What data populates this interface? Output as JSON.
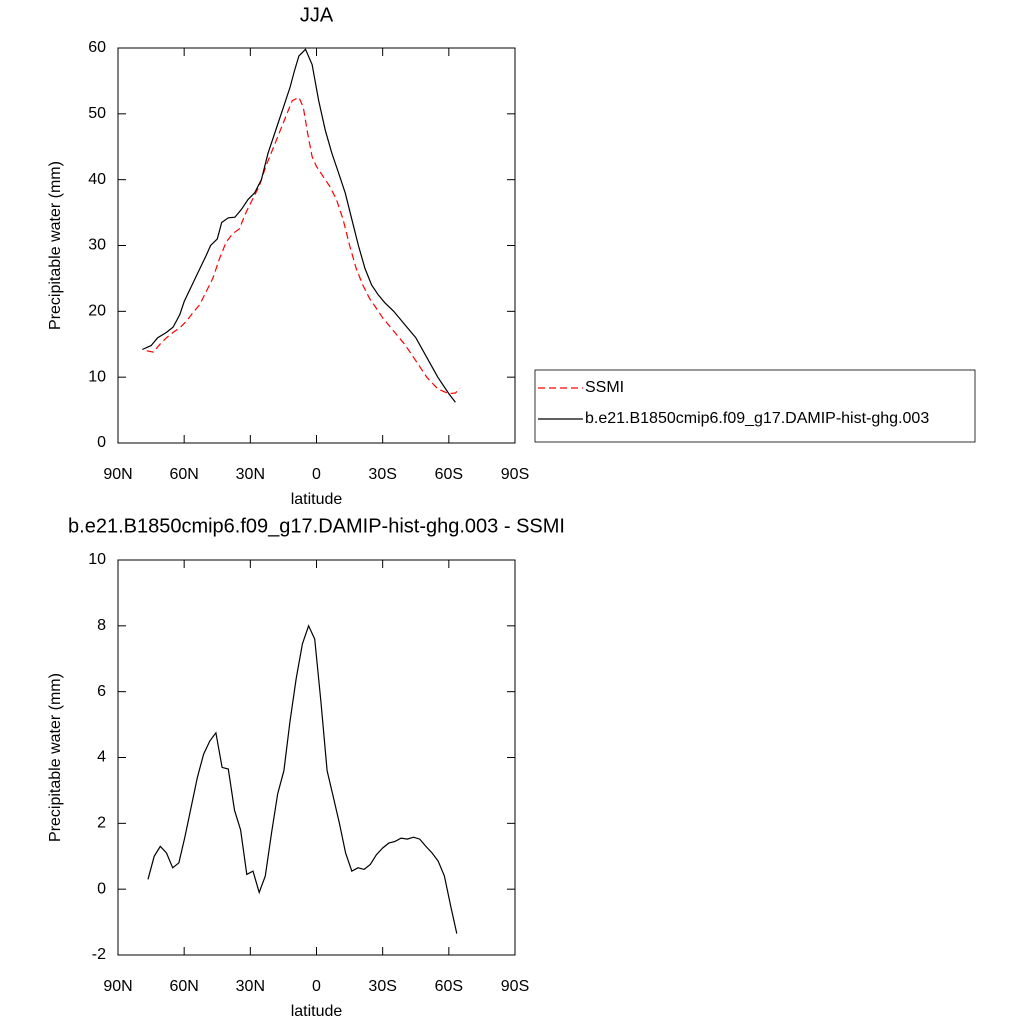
{
  "chart_data": [
    {
      "type": "line",
      "title": "JJA",
      "xlabel": "latitude",
      "ylabel": "Precipitable water (mm)",
      "xlim": [
        90,
        -90
      ],
      "ylim": [
        0,
        60
      ],
      "xticks": [
        {
          "value": 90,
          "label": "90N"
        },
        {
          "value": 60,
          "label": "60N"
        },
        {
          "value": 30,
          "label": "30N"
        },
        0,
        {
          "value": -30,
          "label": "30S"
        },
        {
          "value": -60,
          "label": "60S"
        },
        {
          "value": -90,
          "label": "90S"
        }
      ],
      "yticks": [
        0,
        10,
        20,
        30,
        40,
        50,
        60
      ],
      "legend": "right",
      "series": [
        {
          "name": "SSMI",
          "color": "#ff0000",
          "dash": true,
          "x": [
            77,
            74,
            71,
            68,
            65,
            62,
            59,
            56,
            53,
            50,
            47,
            44,
            41,
            38,
            35,
            32,
            29,
            26,
            23,
            20,
            17,
            14,
            11,
            8,
            6,
            4,
            2,
            0,
            -3,
            -6,
            -9,
            -12,
            -15,
            -18,
            -21,
            -24,
            -27,
            -30,
            -35,
            -40,
            -45,
            -50,
            -55,
            -60,
            -63,
            -65
          ],
          "values": [
            14,
            13.8,
            15,
            16,
            16.8,
            17.5,
            18.5,
            19.8,
            21,
            23,
            25,
            28,
            30.5,
            31.8,
            32.5,
            35,
            37,
            39,
            42,
            44.5,
            47,
            49.5,
            52,
            52.5,
            51,
            47,
            43.5,
            42,
            40.5,
            39,
            37,
            34,
            30,
            26.5,
            24,
            22,
            20.5,
            19,
            17,
            15,
            12.5,
            10,
            8.2,
            7.5,
            7.6,
            8.3
          ]
        },
        {
          "name": "b.e21.B1850cmip6.f09_g17.DAMIP-hist-ghg.003",
          "color": "#000000",
          "dash": false,
          "x": [
            79,
            75,
            72,
            68,
            65,
            62,
            60,
            55,
            50,
            48,
            45,
            43,
            40,
            37,
            34,
            31,
            28,
            25,
            22,
            18,
            15,
            12,
            10,
            8,
            5,
            2,
            -1,
            -4,
            -7,
            -10,
            -13,
            -16,
            -19,
            -22,
            -25,
            -28,
            -31,
            -35,
            -40,
            -45,
            -50,
            -55,
            -60,
            -63
          ],
          "values": [
            14.2,
            14.8,
            16,
            16.8,
            17.6,
            19.5,
            21.5,
            25,
            28.5,
            30,
            31,
            33.5,
            34.2,
            34.3,
            35.5,
            37,
            38,
            40,
            44,
            48,
            51,
            54,
            56.5,
            58.8,
            59.8,
            57.5,
            52,
            47.5,
            44,
            41,
            38,
            34,
            30,
            26.5,
            24,
            22.5,
            21.3,
            20,
            18,
            16,
            13,
            10,
            7.5,
            6.2
          ]
        }
      ]
    },
    {
      "type": "line",
      "title": "b.e21.B1850cmip6.f09_g17.DAMIP-hist-ghg.003 - SSMI",
      "xlabel": "latitude",
      "ylabel": "Precipitable water (mm)",
      "xlim": [
        90,
        -90
      ],
      "ylim": [
        -2,
        10
      ],
      "xticks": [
        {
          "value": 90,
          "label": "90N"
        },
        {
          "value": 60,
          "label": "60N"
        },
        {
          "value": 30,
          "label": "30N"
        },
        0,
        {
          "value": -30,
          "label": "30S"
        },
        {
          "value": -60,
          "label": "60S"
        },
        {
          "value": -90,
          "label": "90S"
        }
      ],
      "yticks": [
        -2,
        0,
        2,
        4,
        6,
        8,
        10
      ],
      "color": "#000000",
      "x": [
        76.4,
        73.6,
        70.8,
        68,
        65.2,
        62.4,
        59.6,
        56.8,
        54,
        51.2,
        48.4,
        45.6,
        42.8,
        40,
        37.2,
        34.4,
        31.6,
        28.8,
        26,
        23.2,
        20.4,
        17.6,
        14.8,
        12,
        9.2,
        6.4,
        3.6,
        0.8,
        -2,
        -4.8,
        -7.6,
        -10.4,
        -13.2,
        -16,
        -18.8,
        -21.6,
        -24.4,
        -27.2,
        -30,
        -32.8,
        -35.6,
        -38.4,
        -41.2,
        -44,
        -46.8,
        -49.6,
        -52.4,
        -55.2,
        -58,
        -60.8,
        -63.6
      ],
      "values": [
        0.3,
        1.0,
        1.3,
        1.1,
        0.65,
        0.8,
        1.6,
        2.5,
        3.4,
        4.1,
        4.5,
        4.75,
        3.7,
        3.65,
        2.4,
        1.8,
        0.45,
        0.55,
        -0.1,
        0.4,
        1.7,
        2.9,
        3.6,
        5.1,
        6.4,
        7.45,
        8.0,
        7.6,
        5.7,
        3.6,
        2.8,
        2.0,
        1.1,
        0.55,
        0.65,
        0.6,
        0.75,
        1.05,
        1.25,
        1.4,
        1.45,
        1.55,
        1.52,
        1.58,
        1.52,
        1.3,
        1.1,
        0.85,
        0.4,
        -0.5,
        -1.35
      ]
    }
  ]
}
